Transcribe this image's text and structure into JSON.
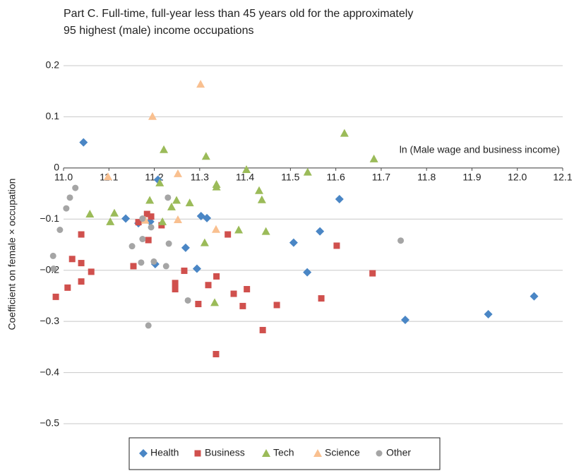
{
  "chart_data": {
    "type": "scatter",
    "title": [
      "Part C. Full-time, full-year less than 45 years old for the approximately",
      "95 highest (male) income occupations"
    ],
    "x_label": "ln (Male wage and business income)",
    "y_label": "Coefficient on female × occupation",
    "xlim": [
      11.0,
      12.1
    ],
    "ylim": [
      -0.5,
      0.2
    ],
    "xticks": [
      {
        "value": 11.0,
        "label": "11.0"
      },
      11.1,
      11.2,
      11.3,
      11.4,
      11.5,
      11.6,
      11.7,
      11.8,
      11.9,
      {
        "value": 12.0,
        "label": "12.0"
      },
      12.1
    ],
    "yticks": [
      {
        "value": -0.5,
        "label": "−0.5"
      },
      {
        "value": -0.4,
        "label": "−0.4"
      },
      {
        "value": -0.3,
        "label": "−0.3"
      },
      {
        "value": -0.2,
        "label": "−0.2"
      },
      {
        "value": -0.1,
        "label": "−0.1"
      },
      0,
      0.1,
      0.2
    ],
    "grid": true,
    "legend": "bottom",
    "series": [
      {
        "name": "Health",
        "color": "#4a86c5",
        "marker": "diamond",
        "x": [
          11.044,
          11.137,
          11.165,
          11.191,
          11.202,
          11.208,
          11.269,
          11.294,
          11.303,
          11.316,
          11.507,
          11.537,
          11.565,
          11.608,
          11.753,
          11.936,
          12.037
        ],
        "values": [
          0.05,
          -0.099,
          -0.108,
          -0.105,
          -0.188,
          -0.023,
          -0.156,
          -0.197,
          -0.094,
          -0.098,
          -0.146,
          -0.204,
          -0.124,
          -0.061,
          -0.297,
          -0.286,
          -0.251
        ]
      },
      {
        "name": "Business",
        "color": "#d0504d",
        "marker": "square",
        "x": [
          10.983,
          11.009,
          11.019,
          11.039,
          11.039,
          11.039,
          11.061,
          11.154,
          11.165,
          11.184,
          11.187,
          11.193,
          11.216,
          11.246,
          11.246,
          11.266,
          11.297,
          11.319,
          11.337,
          11.336,
          11.362,
          11.375,
          11.395,
          11.404,
          11.439,
          11.47,
          11.568,
          11.602,
          11.681
        ],
        "values": [
          -0.252,
          -0.234,
          -0.178,
          -0.13,
          -0.186,
          -0.222,
          -0.203,
          -0.192,
          -0.106,
          -0.09,
          -0.141,
          -0.095,
          -0.112,
          -0.225,
          -0.237,
          -0.201,
          -0.266,
          -0.229,
          -0.212,
          -0.364,
          -0.13,
          -0.246,
          -0.27,
          -0.237,
          -0.317,
          -0.268,
          -0.255,
          -0.152,
          -0.206
        ]
      },
      {
        "name": "Tech",
        "color": "#9bbb59",
        "marker": "triangle",
        "x": [
          11.058,
          11.103,
          11.112,
          11.19,
          11.212,
          11.218,
          11.221,
          11.238,
          11.249,
          11.278,
          11.311,
          11.314,
          11.337,
          11.337,
          11.333,
          11.386,
          11.403,
          11.431,
          11.437,
          11.446,
          11.538,
          11.619,
          11.684
        ],
        "values": [
          -0.09,
          -0.105,
          -0.088,
          -0.063,
          -0.029,
          -0.105,
          0.036,
          -0.076,
          -0.063,
          -0.068,
          -0.146,
          0.023,
          -0.032,
          -0.037,
          -0.263,
          -0.121,
          -0.003,
          -0.044,
          -0.062,
          -0.124,
          -0.008,
          0.068,
          0.018
        ]
      },
      {
        "name": "Science",
        "color": "#f9c090",
        "marker": "triangle",
        "x": [
          11.098,
          11.196,
          11.18,
          11.252,
          11.252,
          11.302,
          11.336
        ],
        "values": [
          -0.017,
          0.101,
          -0.102,
          -0.011,
          -0.101,
          0.164,
          -0.12
        ]
      },
      {
        "name": "Other",
        "color": "#a5a5a5",
        "marker": "circle",
        "x": [
          10.977,
          10.978,
          10.992,
          11.006,
          11.014,
          11.026,
          11.151,
          11.171,
          11.174,
          11.174,
          11.187,
          11.193,
          11.199,
          11.226,
          11.23,
          11.232,
          11.274,
          11.743
        ],
        "values": [
          -0.172,
          -0.197,
          -0.121,
          -0.079,
          -0.058,
          -0.039,
          -0.153,
          -0.185,
          -0.139,
          -0.099,
          -0.308,
          -0.116,
          -0.183,
          -0.192,
          -0.058,
          -0.148,
          -0.259,
          -0.142
        ]
      }
    ]
  }
}
